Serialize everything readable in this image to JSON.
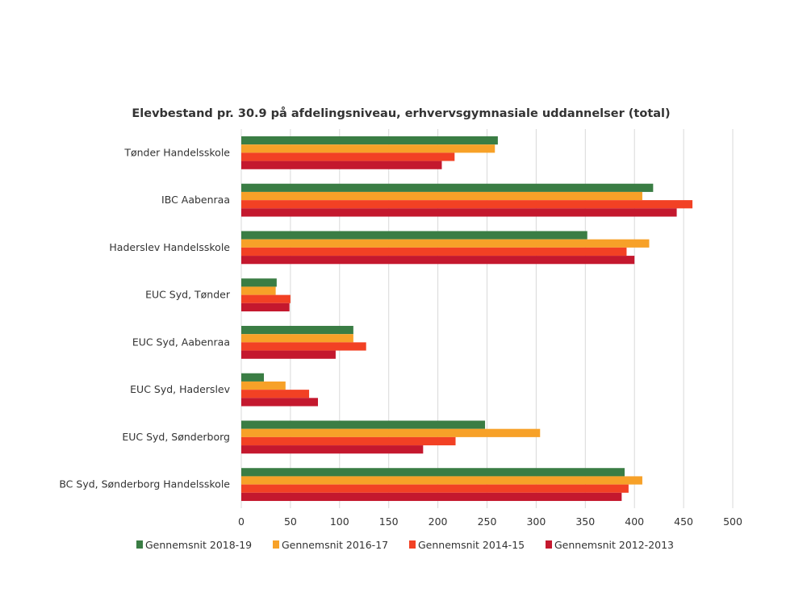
{
  "chart_data": {
    "type": "bar",
    "orientation": "horizontal",
    "title": "Elevbestand pr. 30.9 på afdelingsniveau, erhvervsgymnasiale uddannelser (total)",
    "categories": [
      "Tønder Handelsskole",
      "IBC  Aabenraa",
      "Haderslev Handelsskole",
      "EUC Syd, Tønder",
      "EUC Syd, Aabenraa",
      "EUC Syd, Haderslev",
      "EUC Syd, Sønderborg",
      "BC Syd, Sønderborg Handelsskole"
    ],
    "series": [
      {
        "name": "Gennemsnit 2018-19",
        "color": "#3a7d44",
        "values": [
          261,
          419,
          352,
          36,
          114,
          23,
          248,
          390
        ]
      },
      {
        "name": "Gennemsnit 2016-17",
        "color": "#f7a128",
        "values": [
          258,
          408,
          415,
          35,
          114,
          45,
          304,
          408
        ]
      },
      {
        "name": "Gennemsnit 2014-15",
        "color": "#f24124",
        "values": [
          217,
          459,
          392,
          50,
          127,
          69,
          218,
          394
        ]
      },
      {
        "name": "Gennemsnit 2012-2013",
        "color": "#c4182e",
        "values": [
          204,
          443,
          400,
          49,
          96,
          78,
          185,
          387
        ]
      }
    ],
    "xlim": [
      0,
      500
    ],
    "xticks": [
      0,
      50,
      100,
      150,
      200,
      250,
      300,
      350,
      400,
      450,
      500
    ],
    "grid": true,
    "legend_position": "bottom"
  }
}
